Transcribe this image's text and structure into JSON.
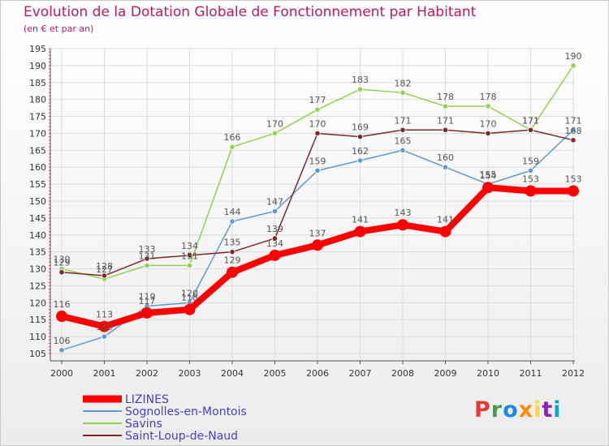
{
  "header": {
    "title": "Evolution de la Dotation Globale de Fonctionnement par Habitant",
    "subtitle": "(en € et par an)"
  },
  "logo": {
    "text": "Proxiti",
    "letters": [
      {
        "ch": "P",
        "color": "#e53935"
      },
      {
        "ch": "r",
        "color": "#43a047"
      },
      {
        "ch": "o",
        "color": "#1e88e5"
      },
      {
        "ch": "x",
        "color": "#fb8c00"
      },
      {
        "ch": "i",
        "color": "#fdd835"
      },
      {
        "ch": "t",
        "color": "#8e24aa"
      },
      {
        "ch": "i",
        "color": "#00acc1"
      }
    ]
  },
  "chart_data": {
    "type": "line",
    "title": "Evolution de la Dotation Globale de Fonctionnement par Habitant",
    "subtitle": "(en € et par an)",
    "xlabel": "",
    "ylabel": "",
    "categories": [
      "2000",
      "2001",
      "2002",
      "2003",
      "2004",
      "2005",
      "2006",
      "2007",
      "2008",
      "2009",
      "2010",
      "2011",
      "2012"
    ],
    "ylim": [
      105,
      195
    ],
    "yticks": [
      105,
      110,
      115,
      120,
      125,
      130,
      135,
      140,
      145,
      150,
      155,
      160,
      165,
      170,
      175,
      180,
      185,
      190,
      195
    ],
    "grid": true,
    "legend_position": "bottom-left",
    "series": [
      {
        "name": "LIZINES",
        "color": "#ff0000",
        "values": [
          116,
          113,
          117,
          118,
          129,
          134,
          137,
          141,
          143,
          141,
          154,
          153,
          153
        ]
      },
      {
        "name": "Sognolles-en-Montois",
        "color": "#5b9bd5",
        "values": [
          106,
          110,
          119,
          120,
          144,
          147,
          159,
          162,
          165,
          160,
          155,
          159,
          171
        ]
      },
      {
        "name": "Savins",
        "color": "#92d050",
        "values": [
          130,
          127,
          131,
          131,
          166,
          170,
          177,
          183,
          182,
          178,
          178,
          171,
          190
        ]
      },
      {
        "name": "Saint-Loup-de-Naud",
        "color": "#7b2a2a",
        "values": [
          129,
          128,
          133,
          134,
          135,
          139,
          170,
          169,
          171,
          171,
          170,
          171,
          168
        ]
      }
    ]
  }
}
